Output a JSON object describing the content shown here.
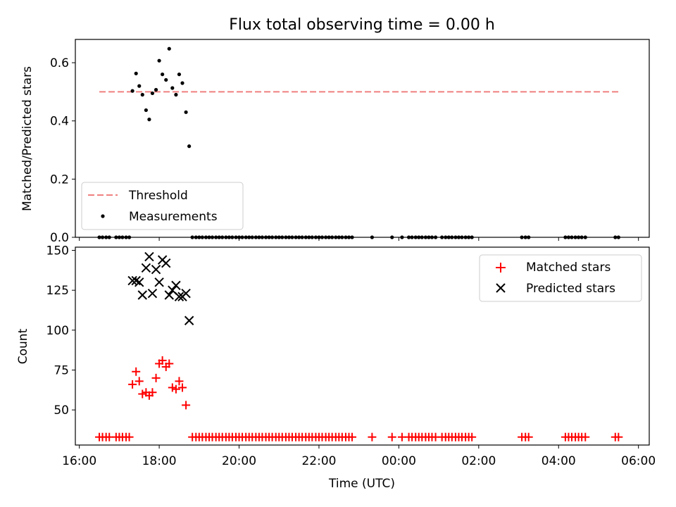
{
  "title": "Flux total observing time = 0.00 h",
  "chart_data": [
    {
      "type": "scatter",
      "ylabel": "Matched/Predicted stars",
      "ylim": [
        0,
        0.68
      ],
      "yticks": [
        "0.0",
        "0.2",
        "0.4",
        "0.6"
      ],
      "ytick_values": [
        0,
        0.2,
        0.4,
        0.6
      ],
      "xlim_hours": [
        15.9,
        30.27
      ],
      "threshold": {
        "name": "Threshold",
        "value": 0.5,
        "x_range_hours": [
          16.5,
          29.5
        ],
        "color": "#f08080"
      },
      "measurements": {
        "name": "Measurements",
        "color": "#000000",
        "points": [
          [
            17.33,
            0.503
          ],
          [
            17.42,
            0.563
          ],
          [
            17.5,
            0.52
          ],
          [
            17.58,
            0.49
          ],
          [
            17.67,
            0.437
          ],
          [
            17.75,
            0.405
          ],
          [
            17.83,
            0.495
          ],
          [
            17.92,
            0.507
          ],
          [
            18.0,
            0.607
          ],
          [
            18.08,
            0.56
          ],
          [
            18.17,
            0.541
          ],
          [
            18.25,
            0.648
          ],
          [
            18.33,
            0.513
          ],
          [
            18.42,
            0.49
          ],
          [
            18.5,
            0.56
          ],
          [
            18.58,
            0.53
          ],
          [
            18.67,
            0.43
          ],
          [
            18.75,
            0.313
          ]
        ],
        "zero_points_hours": [
          16.5,
          16.58,
          16.67,
          16.75,
          16.92,
          17.0,
          17.08,
          17.17,
          17.25,
          18.83,
          18.92,
          19.0,
          19.08,
          19.17,
          19.25,
          19.33,
          19.42,
          19.5,
          19.58,
          19.67,
          19.75,
          19.83,
          19.92,
          20.0,
          20.08,
          20.17,
          20.25,
          20.33,
          20.42,
          20.5,
          20.58,
          20.67,
          20.75,
          20.83,
          20.92,
          21.0,
          21.08,
          21.17,
          21.25,
          21.33,
          21.42,
          21.5,
          21.58,
          21.67,
          21.75,
          21.83,
          21.92,
          22.0,
          22.08,
          22.17,
          22.25,
          22.33,
          22.42,
          22.5,
          22.58,
          22.67,
          22.75,
          22.83,
          23.33,
          23.83,
          24.08,
          24.25,
          24.33,
          24.42,
          24.5,
          24.58,
          24.67,
          24.75,
          24.83,
          24.92,
          25.08,
          25.17,
          25.25,
          25.33,
          25.42,
          25.5,
          25.58,
          25.67,
          25.75,
          25.83,
          27.08,
          27.17,
          27.25,
          28.17,
          28.25,
          28.33,
          28.42,
          28.5,
          28.58,
          28.67,
          29.42,
          29.5
        ]
      },
      "legend": [
        "Threshold",
        "Measurements"
      ],
      "legend_position": "lower-left"
    },
    {
      "type": "scatter",
      "ylabel": "Count",
      "xlabel": "Time (UTC)",
      "ylim": [
        28,
        152
      ],
      "yticks": [
        "50",
        "75",
        "100",
        "125",
        "150"
      ],
      "ytick_values": [
        50,
        75,
        100,
        125,
        150
      ],
      "xlim_hours": [
        15.9,
        30.27
      ],
      "xticks": [
        "16:00",
        "18:00",
        "20:00",
        "22:00",
        "00:00",
        "02:00",
        "04:00",
        "06:00"
      ],
      "xtick_hours": [
        16,
        18,
        20,
        22,
        24,
        26,
        28,
        30
      ],
      "series": [
        {
          "name": "Matched stars",
          "marker": "plus",
          "color": "#ff0000",
          "points": [
            [
              17.33,
              66
            ],
            [
              17.42,
              74
            ],
            [
              17.5,
              68
            ],
            [
              17.58,
              60
            ],
            [
              17.67,
              61
            ],
            [
              17.75,
              59
            ],
            [
              17.83,
              61
            ],
            [
              17.92,
              70
            ],
            [
              18.0,
              79
            ],
            [
              18.08,
              81
            ],
            [
              18.17,
              77
            ],
            [
              18.25,
              79
            ],
            [
              18.33,
              64
            ],
            [
              18.42,
              63
            ],
            [
              18.5,
              68
            ],
            [
              18.58,
              64
            ],
            [
              18.67,
              53
            ]
          ],
          "baseline_value": 33
        },
        {
          "name": "Predicted stars",
          "marker": "x",
          "color": "#000000",
          "points": [
            [
              17.33,
              131
            ],
            [
              17.42,
              131
            ],
            [
              17.5,
              130
            ],
            [
              17.58,
              122
            ],
            [
              17.67,
              139
            ],
            [
              17.75,
              146
            ],
            [
              17.83,
              123
            ],
            [
              17.92,
              138
            ],
            [
              18.0,
              130
            ],
            [
              18.08,
              144
            ],
            [
              18.17,
              142
            ],
            [
              18.25,
              122
            ],
            [
              18.33,
              125
            ],
            [
              18.42,
              128
            ],
            [
              18.5,
              121
            ],
            [
              18.58,
              121
            ],
            [
              18.67,
              123
            ],
            [
              18.75,
              106
            ]
          ]
        }
      ],
      "legend": [
        "Matched stars",
        "Predicted stars"
      ],
      "legend_position": "upper-right"
    }
  ]
}
